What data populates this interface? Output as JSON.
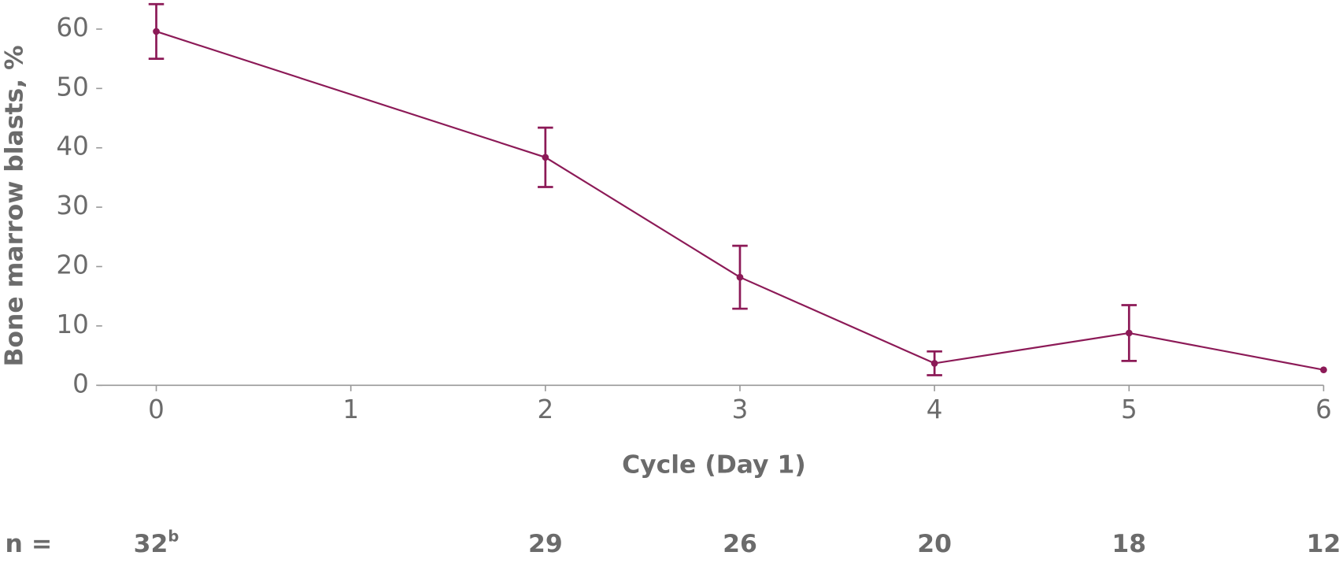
{
  "chart_data": {
    "type": "line",
    "y_label": "Bone marrow blasts, %",
    "x_label": "Cycle (Day 1)",
    "x": [
      0,
      2,
      3,
      4,
      5,
      6
    ],
    "values": [
      59.6,
      38.4,
      18.2,
      3.7,
      8.8,
      2.6
    ],
    "errors": [
      4.6,
      5.0,
      5.3,
      2.0,
      4.7,
      null
    ],
    "color": "#8c1a57",
    "xlim": [
      -0.3,
      6
    ],
    "xticks": [
      0,
      1,
      2,
      3,
      4,
      5,
      6
    ],
    "ylim": [
      0,
      65
    ],
    "yticks": [
      0,
      10,
      20,
      30,
      40,
      50,
      60
    ],
    "n_label": "n =",
    "n": [
      {
        "x": 0,
        "count": 32,
        "footnote": "b"
      },
      {
        "x": 2,
        "count": 29
      },
      {
        "x": 3,
        "count": 26
      },
      {
        "x": 4,
        "count": 20
      },
      {
        "x": 5,
        "count": 18
      },
      {
        "x": 6,
        "count": 12
      }
    ]
  }
}
